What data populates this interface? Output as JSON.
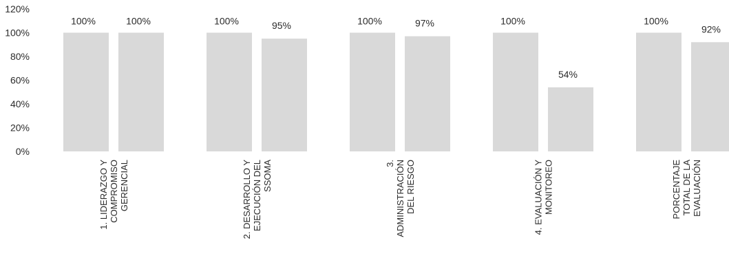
{
  "chart_data": {
    "type": "bar",
    "categories": [
      [
        "1. LIDERAZGO Y",
        "COMPROMISO",
        "GERENCIAL"
      ],
      [
        "2. DESARROLLO Y",
        "EJECUCIÓN DEL",
        "SSOMA"
      ],
      [
        "3.",
        "ADMINISTRACIÓN",
        "DEL RIESGO"
      ],
      [
        "4. EVALUACIÓN Y",
        "MONITOREO"
      ],
      [
        "PORCENTAJE",
        "TOTAL DE LA",
        "EVALUACIÓN"
      ]
    ],
    "series": [
      {
        "values": [
          100,
          100,
          100,
          100,
          100
        ]
      },
      {
        "values": [
          100,
          95,
          97,
          54,
          92
        ]
      }
    ],
    "data_labels": [
      [
        "100%",
        "100%"
      ],
      [
        "100%",
        "95%"
      ],
      [
        "100%",
        "97%"
      ],
      [
        "100%",
        "54%"
      ],
      [
        "100%",
        "92%"
      ]
    ],
    "y_ticks": [
      "0%",
      "20%",
      "40%",
      "60%",
      "80%",
      "100%",
      "120%"
    ],
    "ylim": [
      0,
      120
    ],
    "bar_color": "#d9d9d9",
    "grid": false,
    "legend": "none",
    "title": "",
    "xlabel": "",
    "ylabel": ""
  }
}
